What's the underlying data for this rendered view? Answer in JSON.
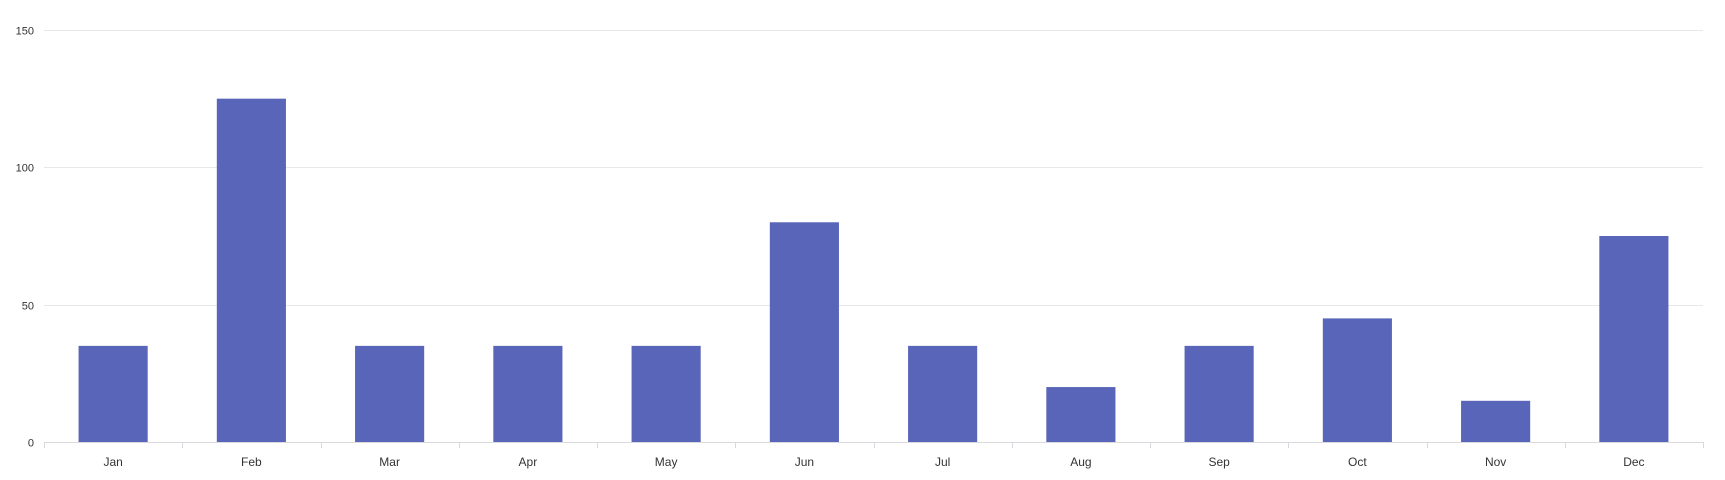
{
  "chart_data": {
    "type": "bar",
    "categories": [
      "Jan",
      "Feb",
      "Mar",
      "Apr",
      "May",
      "Jun",
      "Jul",
      "Aug",
      "Sep",
      "Oct",
      "Nov",
      "Dec"
    ],
    "values": [
      35,
      125,
      35,
      35,
      35,
      80,
      35,
      20,
      35,
      45,
      15,
      75
    ],
    "ylim": [
      0,
      150
    ],
    "yticks": [
      0,
      50,
      100,
      150
    ],
    "grid": true,
    "colors": {
      "bar": "#5865b8",
      "grid": "#e8e8ec",
      "axis": "#d9d9de",
      "text": "#333333"
    }
  }
}
